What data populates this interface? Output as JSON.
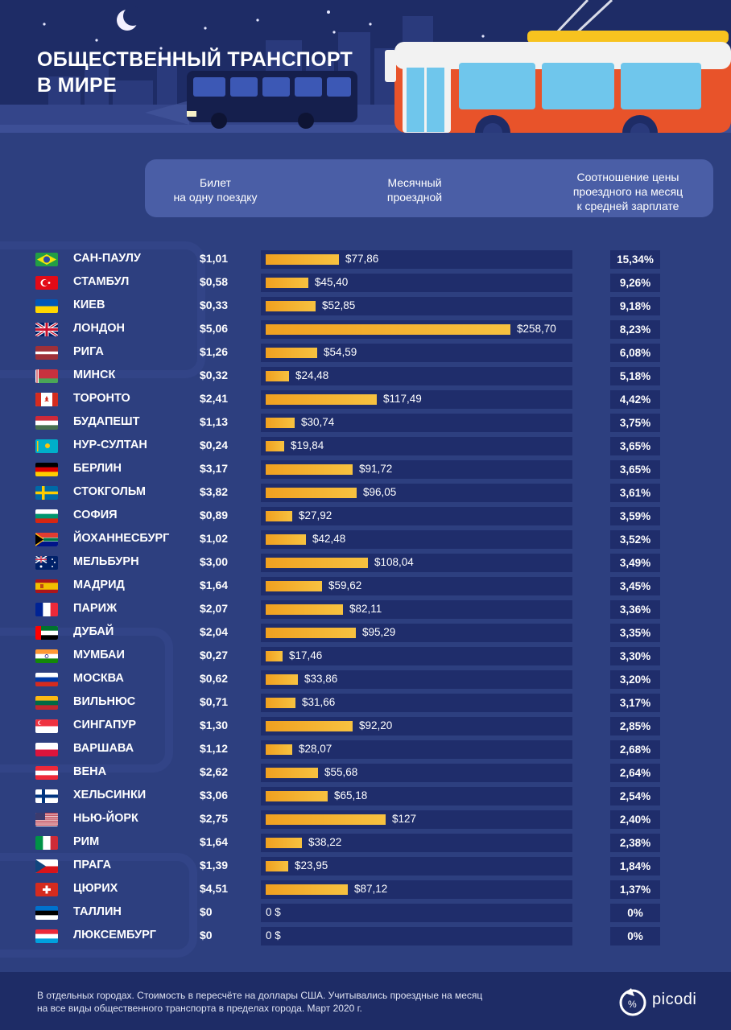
{
  "header": {
    "title_line1": "ОБЩЕСТВЕННЫЙ ТРАНСПОРТ",
    "title_line2": "В МИРЕ"
  },
  "columns": {
    "ticket_line1": "Билет",
    "ticket_line2": "на одну поездку",
    "monthly_line1": "Месячный",
    "monthly_line2": "проездной",
    "ratio_line1": "Соотношение цены",
    "ratio_line2": "проездного на месяц",
    "ratio_line3": "к средней зарплате"
  },
  "chart_data": {
    "type": "bar",
    "orientation": "horizontal",
    "bar_max": 258.7,
    "rows": [
      {
        "city": "САН-ПАУЛУ",
        "ticket": "$1,01",
        "monthly": 77.86,
        "monthly_label": "$77,86",
        "ratio": "15,34%",
        "flag": "brazil"
      },
      {
        "city": "СТАМБУЛ",
        "ticket": "$0,58",
        "monthly": 45.4,
        "monthly_label": "$45,40",
        "ratio": "9,26%",
        "flag": "turkey"
      },
      {
        "city": "КИЕВ",
        "ticket": "$0,33",
        "monthly": 52.85,
        "monthly_label": "$52,85",
        "ratio": "9,18%",
        "flag": "ukraine"
      },
      {
        "city": "ЛОНДОН",
        "ticket": "$5,06",
        "monthly": 258.7,
        "monthly_label": "$258,70",
        "ratio": "8,23%",
        "flag": "uk"
      },
      {
        "city": "РИГА",
        "ticket": "$1,26",
        "monthly": 54.59,
        "monthly_label": "$54,59",
        "ratio": "6,08%",
        "flag": "latvia"
      },
      {
        "city": "МИНСК",
        "ticket": "$0,32",
        "monthly": 24.48,
        "monthly_label": "$24,48",
        "ratio": "5,18%",
        "flag": "belarus"
      },
      {
        "city": "ТОРОНТО",
        "ticket": "$2,41",
        "monthly": 117.49,
        "monthly_label": "$117,49",
        "ratio": "4,42%",
        "flag": "canada"
      },
      {
        "city": "БУДАПЕШТ",
        "ticket": "$1,13",
        "monthly": 30.74,
        "monthly_label": "$30,74",
        "ratio": "3,75%",
        "flag": "hungary"
      },
      {
        "city": "НУР-СУЛТАН",
        "ticket": "$0,24",
        "monthly": 19.84,
        "monthly_label": "$19,84",
        "ratio": "3,65%",
        "flag": "kazakhstan"
      },
      {
        "city": "БЕРЛИН",
        "ticket": "$3,17",
        "monthly": 91.72,
        "monthly_label": "$91,72",
        "ratio": "3,65%",
        "flag": "germany"
      },
      {
        "city": "СТОКГОЛЬМ",
        "ticket": "$3,82",
        "monthly": 96.05,
        "monthly_label": "$96,05",
        "ratio": "3,61%",
        "flag": "sweden"
      },
      {
        "city": "СОФИЯ",
        "ticket": "$0,89",
        "monthly": 27.92,
        "monthly_label": "$27,92",
        "ratio": "3,59%",
        "flag": "bulgaria"
      },
      {
        "city": "ЙОХАННЕСБУРГ",
        "ticket": "$1,02",
        "monthly": 42.48,
        "monthly_label": "$42,48",
        "ratio": "3,52%",
        "flag": "south-africa"
      },
      {
        "city": "МЕЛЬБУРН",
        "ticket": "$3,00",
        "monthly": 108.04,
        "monthly_label": "$108,04",
        "ratio": "3,49%",
        "flag": "australia"
      },
      {
        "city": "МАДРИД",
        "ticket": "$1,64",
        "monthly": 59.62,
        "monthly_label": "$59,62",
        "ratio": "3,45%",
        "flag": "spain"
      },
      {
        "city": "ПАРИЖ",
        "ticket": "$2,07",
        "monthly": 82.11,
        "monthly_label": "$82,11",
        "ratio": "3,36%",
        "flag": "france"
      },
      {
        "city": "ДУБАЙ",
        "ticket": "$2,04",
        "monthly": 95.29,
        "monthly_label": "$95,29",
        "ratio": "3,35%",
        "flag": "uae"
      },
      {
        "city": "МУМБАИ",
        "ticket": "$0,27",
        "monthly": 17.46,
        "monthly_label": "$17,46",
        "ratio": "3,30%",
        "flag": "india"
      },
      {
        "city": "МОСКВА",
        "ticket": "$0,62",
        "monthly": 33.86,
        "monthly_label": "$33,86",
        "ratio": "3,20%",
        "flag": "russia"
      },
      {
        "city": "ВИЛЬНЮС",
        "ticket": "$0,71",
        "monthly": 31.66,
        "monthly_label": "$31,66",
        "ratio": "3,17%",
        "flag": "lithuania"
      },
      {
        "city": "СИНГАПУР",
        "ticket": "$1,30",
        "monthly": 92.2,
        "monthly_label": "$92,20",
        "ratio": "2,85%",
        "flag": "singapore"
      },
      {
        "city": "ВАРШАВА",
        "ticket": "$1,12",
        "monthly": 28.07,
        "monthly_label": "$28,07",
        "ratio": "2,68%",
        "flag": "poland"
      },
      {
        "city": "ВЕНА",
        "ticket": "$2,62",
        "monthly": 55.68,
        "monthly_label": "$55,68",
        "ratio": "2,64%",
        "flag": "austria"
      },
      {
        "city": "ХЕЛЬСИНКИ",
        "ticket": "$3,06",
        "monthly": 65.18,
        "monthly_label": "$65,18",
        "ratio": "2,54%",
        "flag": "finland"
      },
      {
        "city": "НЬЮ-ЙОРК",
        "ticket": "$2,75",
        "monthly": 127,
        "monthly_label": "$127",
        "ratio": "2,40%",
        "flag": "usa"
      },
      {
        "city": "РИМ",
        "ticket": "$1,64",
        "monthly": 38.22,
        "monthly_label": "$38,22",
        "ratio": "2,38%",
        "flag": "italy"
      },
      {
        "city": "ПРАГА",
        "ticket": "$1,39",
        "monthly": 23.95,
        "monthly_label": "$23,95",
        "ratio": "1,84%",
        "flag": "czechia"
      },
      {
        "city": "ЦЮРИХ",
        "ticket": "$4,51",
        "monthly": 87.12,
        "monthly_label": "$87,12",
        "ratio": "1,37%",
        "flag": "switzerland"
      },
      {
        "city": "ТАЛЛИН",
        "ticket": "$0",
        "monthly": 0,
        "monthly_label": "0 $",
        "ratio": "0%",
        "flag": "estonia"
      },
      {
        "city": "ЛЮКСЕМБУРГ",
        "ticket": "$0",
        "monthly": 0,
        "monthly_label": "0 $",
        "ratio": "0%",
        "flag": "luxembourg"
      }
    ]
  },
  "footer": {
    "note_line1": "В отдельных городах. Стоимость в пересчёте на доллары США. Учитывались проездные на месяц",
    "note_line2": "на все виды общественного транспорта в пределах города. Март 2020 г.",
    "logo": "picodi"
  },
  "colors": {
    "background": "#2d3f7f",
    "header": "#1e2c66",
    "track": "#1f2d6b",
    "bar": "#f5b530",
    "trolley": "#e8532a"
  }
}
